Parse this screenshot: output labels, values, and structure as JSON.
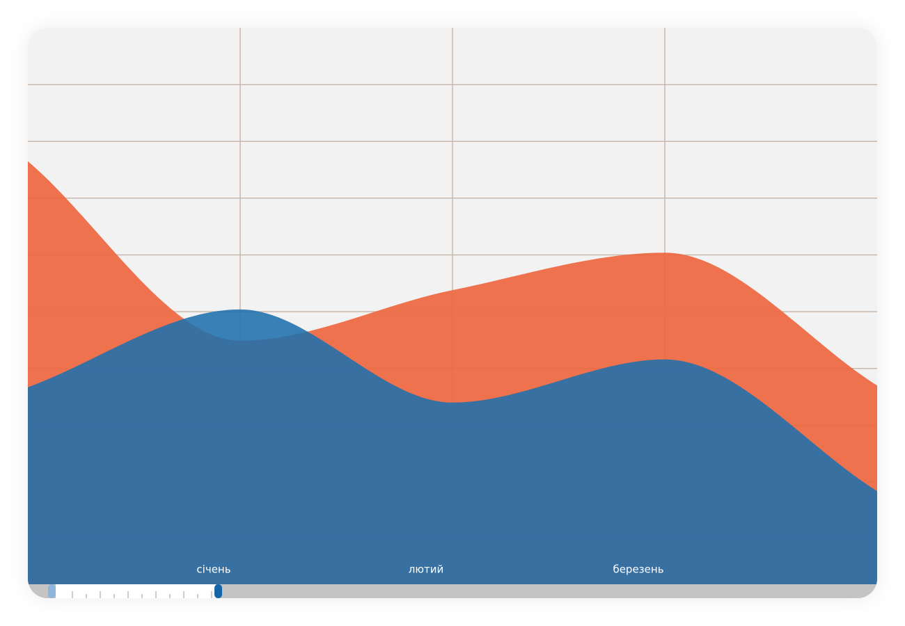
{
  "chart_data": {
    "type": "area",
    "categories": [
      null,
      "січень",
      "лютий",
      "березень",
      null
    ],
    "series": [
      {
        "color": "#ec6a43",
        "values": [
          7.65,
          4.49,
          5.38,
          6.04,
          3.7
        ]
      },
      {
        "color": "#1f6fae",
        "values": [
          3.67,
          5.04,
          3.4,
          4.16,
          1.84
        ]
      }
    ],
    "ylim": [
      0.2,
      10
    ],
    "yticks": [
      1,
      2,
      3,
      4,
      5,
      6,
      7,
      8,
      9
    ],
    "grid": true
  }
}
